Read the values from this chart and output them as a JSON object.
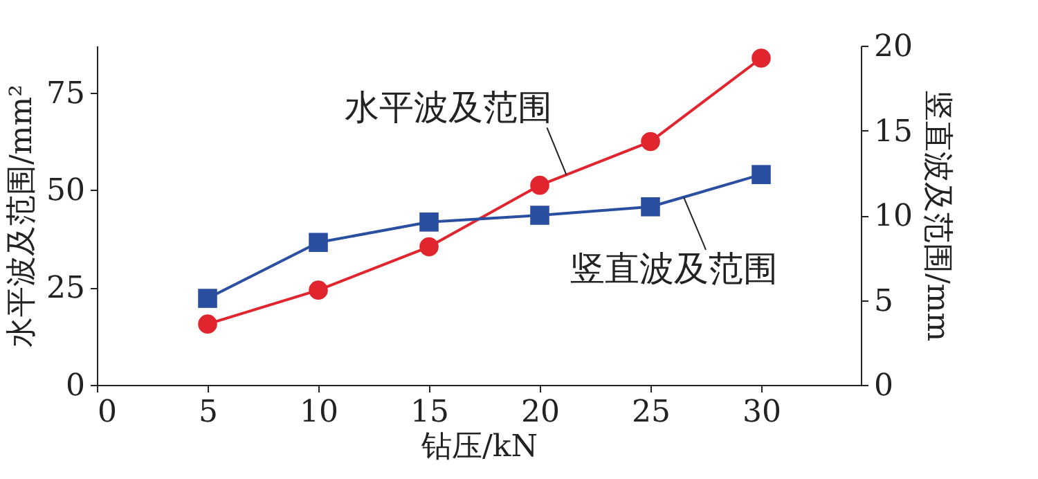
{
  "chart_data": {
    "type": "line",
    "xlabel": "钻压/kN",
    "ylabel": "水平波及范围/mm²",
    "y2label": "竖直波及范围/mm",
    "x": [
      5,
      10,
      15,
      20,
      25,
      30
    ],
    "xlim": [
      0,
      34.5
    ],
    "xticks": [
      0,
      5,
      10,
      15,
      20,
      25,
      30
    ],
    "ylim": [
      0,
      87
    ],
    "yticks": [
      0,
      25,
      50,
      75
    ],
    "y2lim": [
      0,
      20
    ],
    "y2ticks": [
      0,
      5,
      10,
      15,
      20
    ],
    "grid": false,
    "line_style": "solid",
    "series": [
      {
        "name": "水平波及范围",
        "color": "#e0252e",
        "marker": "circle",
        "values": [
          15.6,
          24.3,
          35.4,
          51.2,
          62.4,
          83.8
        ]
      },
      {
        "name": "竖直波及范围",
        "color": "#2a4ea0",
        "marker": "square",
        "axis": "y2",
        "values": [
          5.1,
          8.4,
          9.6,
          10.0,
          10.5,
          12.4
        ]
      }
    ]
  }
}
